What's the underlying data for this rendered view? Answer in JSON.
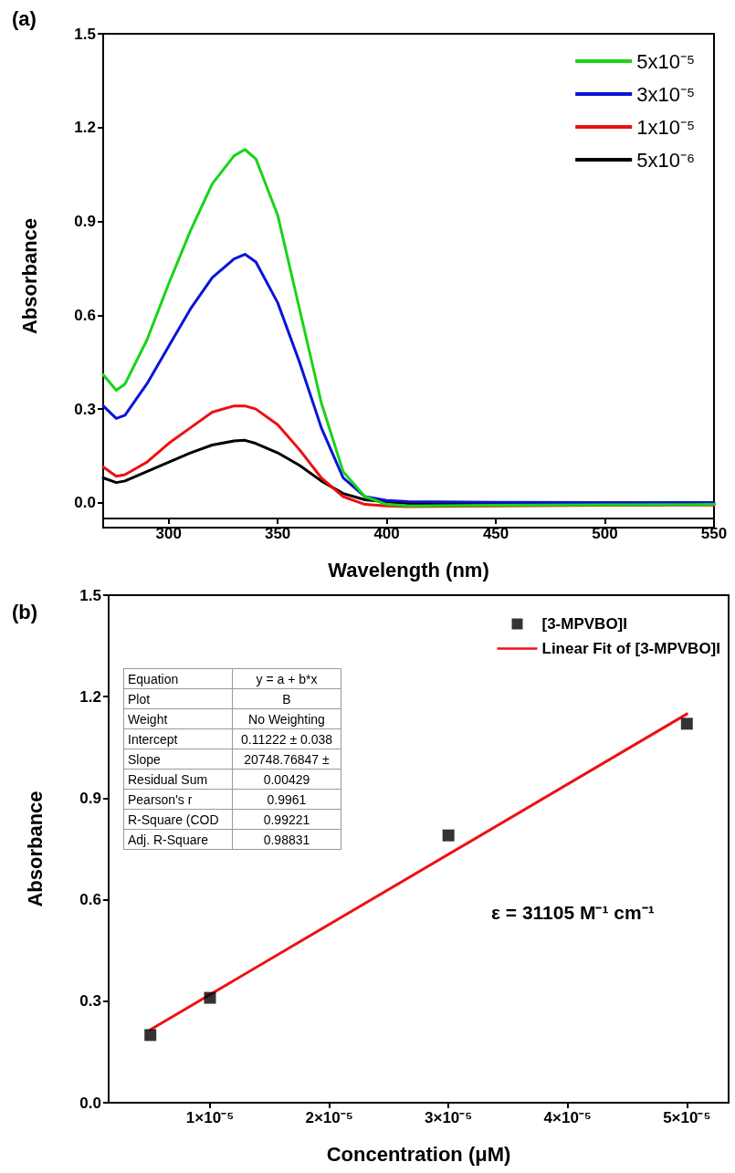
{
  "chart_data": [
    {
      "type": "line",
      "title": "(a)",
      "xlabel": "Wavelength (nm)",
      "ylabel": "Absorbance",
      "xlim": [
        270,
        550
      ],
      "xticks": [
        300,
        350,
        400,
        450,
        500,
        550
      ],
      "ylim": [
        -0.05,
        1.5
      ],
      "yticks": [
        {
          "value": 0,
          "label": "0.0"
        },
        0.3,
        0.6,
        0.9,
        1.2,
        1.5
      ],
      "grid": false,
      "legend": "top right",
      "marker": "none",
      "line_style": "solid",
      "x": [
        270,
        276,
        280,
        290,
        300,
        310,
        320,
        330,
        335,
        340,
        350,
        360,
        370,
        380,
        390,
        400,
        410,
        450,
        500,
        550
      ],
      "series": [
        {
          "name": "5x10⁻⁵",
          "color": "#18d418",
          "values": [
            0.41,
            0.36,
            0.38,
            0.52,
            0.7,
            0.87,
            1.02,
            1.11,
            1.13,
            1.1,
            0.92,
            0.62,
            0.32,
            0.1,
            0.02,
            -0.005,
            -0.01,
            -0.008,
            -0.006,
            -0.005
          ]
        },
        {
          "name": "3x10⁻⁵",
          "color": "#0a14d8",
          "values": [
            0.31,
            0.27,
            0.28,
            0.38,
            0.5,
            0.62,
            0.72,
            0.78,
            0.795,
            0.77,
            0.64,
            0.45,
            0.24,
            0.08,
            0.02,
            0.008,
            0.004,
            0.002,
            0.001,
            0.001
          ]
        },
        {
          "name": "1x10⁻⁵",
          "color": "#ec1010",
          "values": [
            0.115,
            0.085,
            0.09,
            0.13,
            0.19,
            0.24,
            0.29,
            0.31,
            0.31,
            0.3,
            0.25,
            0.17,
            0.08,
            0.02,
            -0.005,
            -0.01,
            -0.012,
            -0.01,
            -0.008,
            -0.007
          ]
        },
        {
          "name": "5x10⁻⁶",
          "color": "#000000",
          "values": [
            0.08,
            0.065,
            0.07,
            0.1,
            0.13,
            0.16,
            0.185,
            0.198,
            0.2,
            0.19,
            0.16,
            0.12,
            0.07,
            0.03,
            0.01,
            0.003,
            -0.002,
            -0.004,
            -0.004,
            -0.004
          ]
        }
      ]
    },
    {
      "type": "scatter",
      "title": "(b)",
      "xlabel": "Concentration (μM)",
      "ylabel": "Absorbance",
      "xlim": [
        1.5e-06,
        5.35e-05
      ],
      "xticks": [
        {
          "value": 1e-05,
          "label": "1×10⁻⁵"
        },
        {
          "value": 2e-05,
          "label": "2×10⁻⁵"
        },
        {
          "value": 3e-05,
          "label": "3×10⁻⁵"
        },
        {
          "value": 4e-05,
          "label": "4×10⁻⁵"
        },
        {
          "value": 5e-05,
          "label": "5×10⁻⁵"
        }
      ],
      "ylim": [
        0,
        1.5
      ],
      "yticks": [
        {
          "value": 0,
          "label": "0.0"
        },
        0.3,
        0.6,
        0.9,
        1.2,
        1.5
      ],
      "grid": false,
      "legend": "top right",
      "series": [
        {
          "name": "[3-MPVBO]I",
          "marker": "square",
          "color": "#000000",
          "x": [
            5e-06,
            1e-05,
            3e-05,
            5e-05
          ],
          "values": [
            0.2,
            0.31,
            0.79,
            1.12
          ]
        },
        {
          "name": "Linear Fit of [3-MPVBO]I",
          "type": "line",
          "marker": "none",
          "line_style": "solid",
          "color": "#ee1111",
          "x": [
            5e-06,
            5e-05
          ],
          "values": [
            0.216,
            1.149
          ]
        }
      ],
      "annotations": [
        "Equation",
        "y = a + b*x",
        "Plot",
        "B",
        "Weight",
        "No Weighting",
        "Intercept",
        "0.11222 ± 0.038",
        "Slope",
        "20748.76847 ±",
        "Residual Sum",
        "0.00429",
        "Pearson's r",
        "0.9961",
        "R-Square (COD",
        "0.99221",
        "Adj. R-Square",
        "0.98831",
        "ε = 31105 M⁻¹ cm⁻¹"
      ]
    }
  ]
}
